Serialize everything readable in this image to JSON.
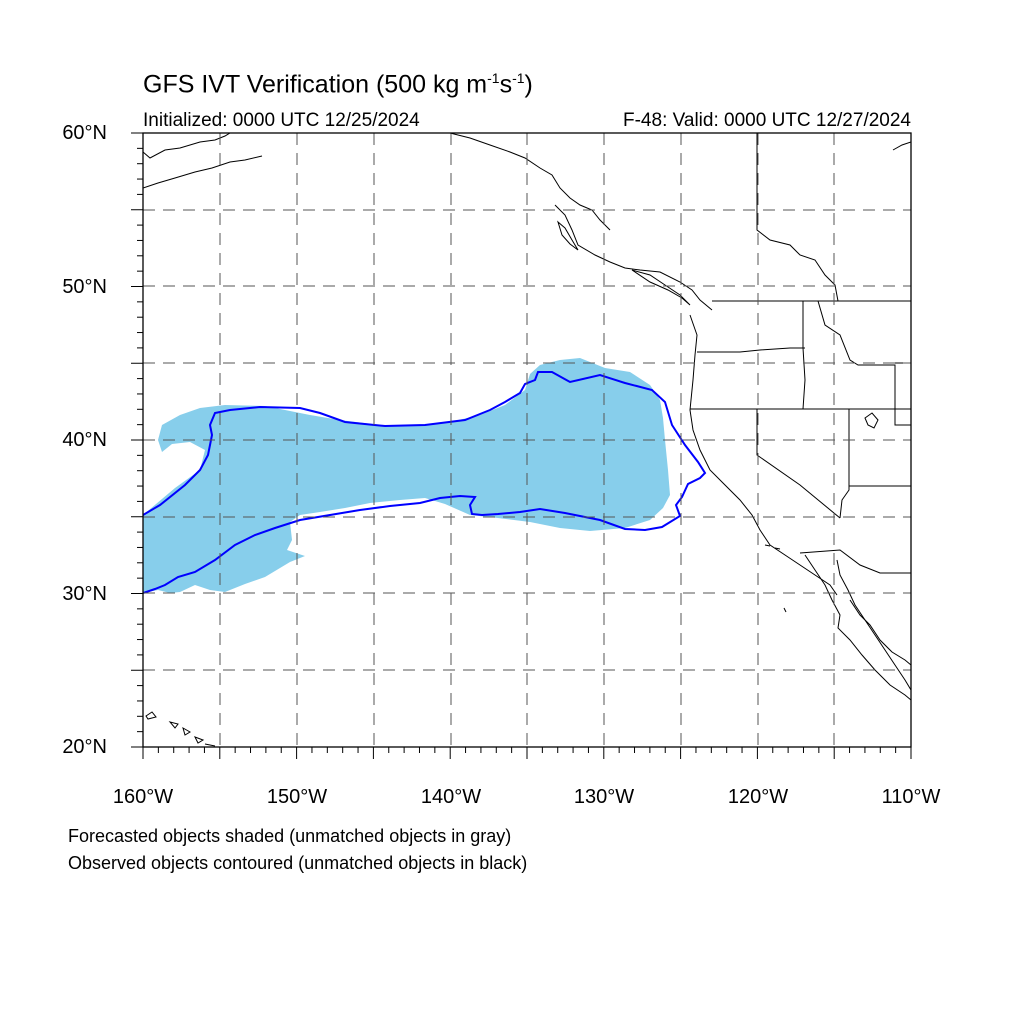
{
  "header": {
    "title_text": "GFS IVT Verification (500 kg m",
    "title_exp1": "-1",
    "title_mid": "s",
    "title_exp2": "-1",
    "title_end": ")",
    "initialized": "Initialized: 0000 UTC 12/25/2024",
    "valid": "F-48: Valid: 0000 UTC 12/27/2024"
  },
  "axes": {
    "lat_labels": [
      "60°N",
      "50°N",
      "40°N",
      "30°N",
      "20°N"
    ],
    "lon_labels": [
      "160°W",
      "150°W",
      "140°W",
      "130°W",
      "120°W",
      "110°W"
    ],
    "lon_range": [
      -160,
      -110
    ],
    "lat_range": [
      20,
      60
    ],
    "grid": "dashed every 5 degrees"
  },
  "legend": {
    "line1": "Forecasted objects shaded (unmatched objects in gray)",
    "line2": "Observed objects contoured (unmatched objects in black)"
  },
  "colors": {
    "forecast_fill": "#87CEEB",
    "observed_contour": "#0000FF",
    "coastline": "#000000",
    "grid": "#555555"
  }
}
